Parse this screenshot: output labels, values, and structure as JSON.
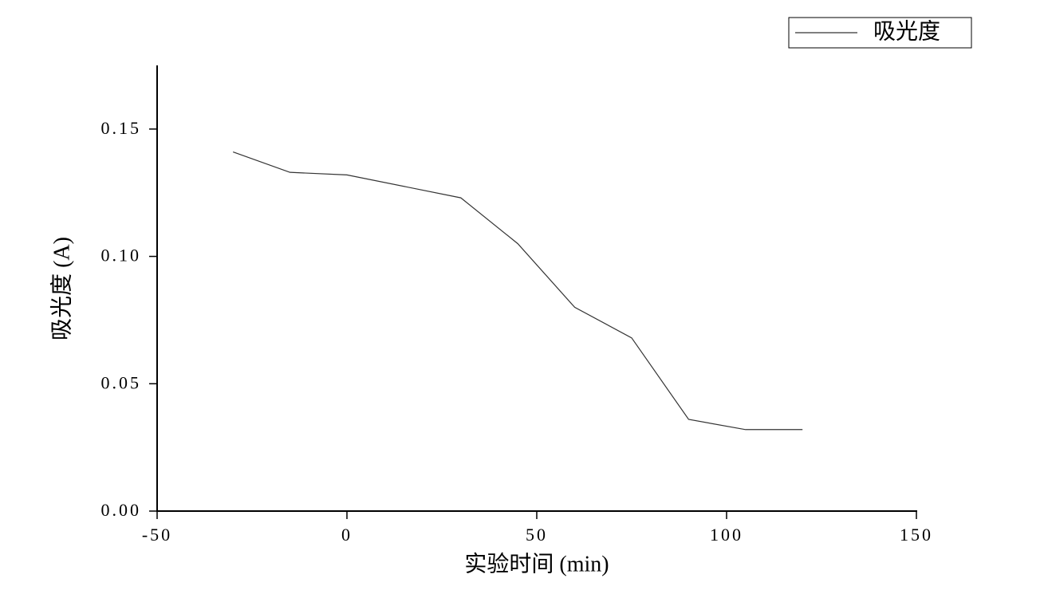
{
  "chart_data": {
    "type": "line",
    "x_label": "实验时间 (min)",
    "y_label": "吸光度 (A)",
    "x": [
      -30,
      -15,
      0,
      30,
      45,
      60,
      75,
      90,
      105,
      120
    ],
    "series": [
      {
        "name": "吸光度",
        "color": "#333333",
        "values": [
          0.141,
          0.133,
          0.132,
          0.123,
          0.105,
          0.08,
          0.068,
          0.036,
          0.032,
          0.032
        ]
      }
    ],
    "xlim": [
      -50,
      150
    ],
    "xticks": [
      -50,
      0,
      50,
      100,
      150
    ],
    "ylim": [
      0,
      0.175
    ],
    "yticks": [
      {
        "value": 0,
        "label": "0.00"
      },
      {
        "value": 0.05,
        "label": "0.05"
      },
      {
        "value": 0.1,
        "label": "0.10"
      },
      {
        "value": 0.15,
        "label": "0.15"
      }
    ],
    "grid": false,
    "legend": "top-right"
  }
}
